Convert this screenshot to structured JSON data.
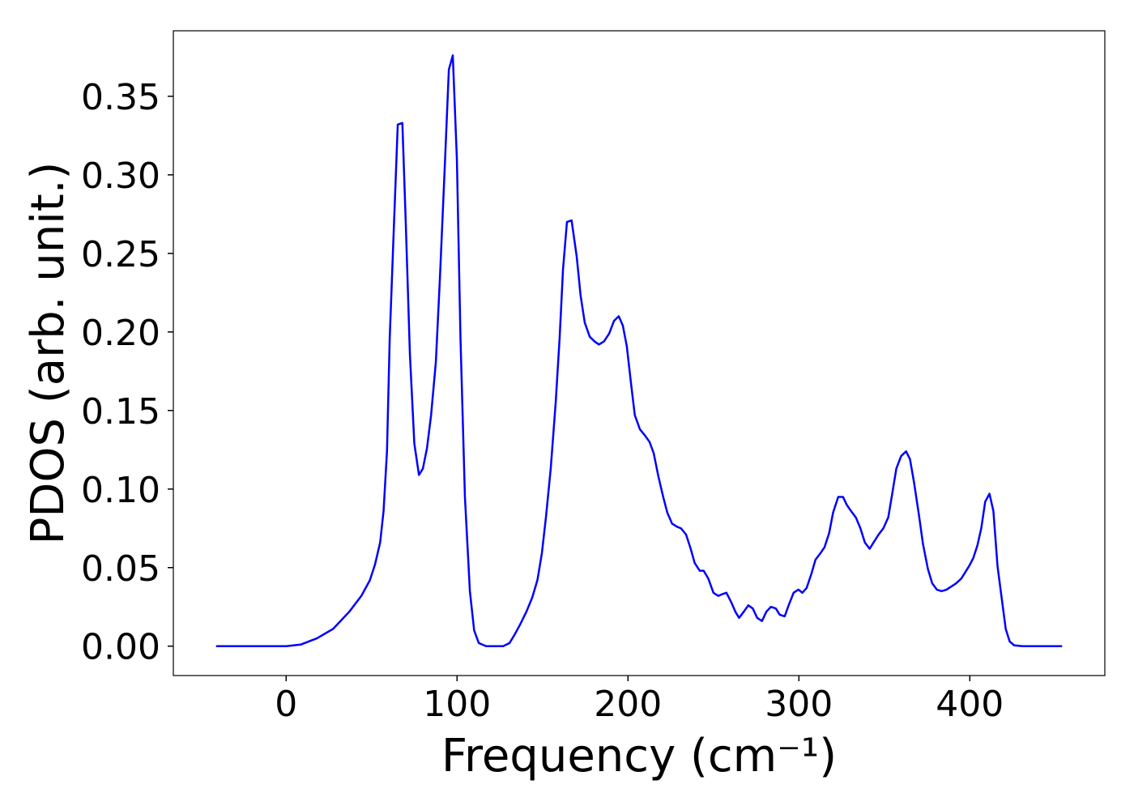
{
  "chart_data": {
    "type": "line",
    "xlabel": "Frequency (cm⁻¹)",
    "ylabel": "PDOS (arb. unit.)",
    "xlim": [
      -66,
      479
    ],
    "ylim": [
      -0.0187,
      0.3917
    ],
    "xticks": [
      0,
      100,
      200,
      300,
      400
    ],
    "yticks": [
      {
        "value": 0,
        "label": "0.00"
      },
      {
        "value": 0.05,
        "label": "0.05"
      },
      {
        "value": 0.1,
        "label": "0.10"
      },
      {
        "value": 0.15,
        "label": "0.15"
      },
      {
        "value": 0.2,
        "label": "0.20"
      },
      {
        "value": 0.25,
        "label": "0.25"
      },
      {
        "value": 0.3,
        "label": "0.30"
      },
      {
        "value": 0.35,
        "label": "0.35"
      }
    ],
    "color": "#0000ff",
    "x": [
      -41,
      0,
      8.5,
      18,
      27.5,
      37,
      44,
      49,
      52,
      55,
      57,
      59,
      60.6,
      63,
      65.3,
      68,
      70,
      72.4,
      75,
      77.7,
      80,
      82.4,
      84.8,
      87.6,
      90,
      92.8,
      95.2,
      97.5,
      99.9,
      102,
      104.6,
      107.5,
      110,
      112.7,
      117,
      127,
      130.7,
      133.5,
      137,
      140.6,
      144,
      147,
      149.6,
      152,
      154.8,
      157.7,
      160,
      162,
      164.3,
      167,
      170,
      172.3,
      174.7,
      177.6,
      180.4,
      183,
      186,
      189,
      191.8,
      194.6,
      197,
      199.3,
      201.7,
      204,
      207,
      210,
      212.6,
      215,
      217.8,
      220.6,
      223,
      225.8,
      228.7,
      231,
      234,
      236.7,
      239,
      242,
      244.3,
      247,
      250,
      252.8,
      255,
      257.6,
      260.4,
      262.8,
      265,
      267.8,
      270.4,
      273,
      275.6,
      278.4,
      281,
      283.6,
      286.5,
      288.8,
      291.7,
      294,
      296.9,
      299.7,
      302,
      304.5,
      307.3,
      309.7,
      312.5,
      315,
      317.7,
      320,
      323,
      325.8,
      328,
      330.5,
      333.3,
      336,
      338.6,
      341.4,
      343.7,
      346.6,
      349.4,
      352.3,
      354.6,
      357,
      359.8,
      362.7,
      365,
      367.4,
      370.3,
      372.6,
      375.5,
      378,
      380.7,
      383.5,
      386.4,
      389.2,
      392,
      395,
      397.3,
      399.6,
      402,
      404.4,
      406.7,
      409,
      411.5,
      413.8,
      416.2,
      418.6,
      421,
      423.3,
      426,
      430.9,
      454
    ],
    "values": [
      0,
      0,
      0.001,
      0.005,
      0.011,
      0.022,
      0.032,
      0.042,
      0.052,
      0.066,
      0.086,
      0.124,
      0.196,
      0.266,
      0.332,
      0.333,
      0.269,
      0.186,
      0.129,
      0.109,
      0.113,
      0.126,
      0.147,
      0.181,
      0.235,
      0.305,
      0.367,
      0.376,
      0.31,
      0.196,
      0.095,
      0.035,
      0.01,
      0.002,
      0,
      0,
      0.002,
      0.007,
      0.014,
      0.022,
      0.031,
      0.042,
      0.059,
      0.082,
      0.113,
      0.155,
      0.196,
      0.24,
      0.27,
      0.271,
      0.248,
      0.223,
      0.206,
      0.197,
      0.194,
      0.192,
      0.194,
      0.199,
      0.207,
      0.21,
      0.204,
      0.191,
      0.168,
      0.147,
      0.138,
      0.134,
      0.13,
      0.123,
      0.108,
      0.095,
      0.085,
      0.078,
      0.076,
      0.075,
      0.071,
      0.062,
      0.053,
      0.048,
      0.048,
      0.043,
      0.034,
      0.032,
      0.033,
      0.034,
      0.028,
      0.022,
      0.018,
      0.022,
      0.026,
      0.024,
      0.018,
      0.016,
      0.022,
      0.025,
      0.024,
      0.02,
      0.019,
      0.026,
      0.034,
      0.036,
      0.034,
      0.037,
      0.046,
      0.055,
      0.059,
      0.063,
      0.072,
      0.085,
      0.095,
      0.095,
      0.09,
      0.086,
      0.082,
      0.075,
      0.066,
      0.062,
      0.066,
      0.071,
      0.075,
      0.082,
      0.097,
      0.113,
      0.121,
      0.124,
      0.119,
      0.104,
      0.083,
      0.065,
      0.049,
      0.04,
      0.036,
      0.035,
      0.036,
      0.038,
      0.04,
      0.043,
      0.047,
      0.051,
      0.056,
      0.064,
      0.075,
      0.092,
      0.097,
      0.086,
      0.051,
      0.031,
      0.011,
      0.003,
      0.0005,
      0,
      0
    ]
  }
}
